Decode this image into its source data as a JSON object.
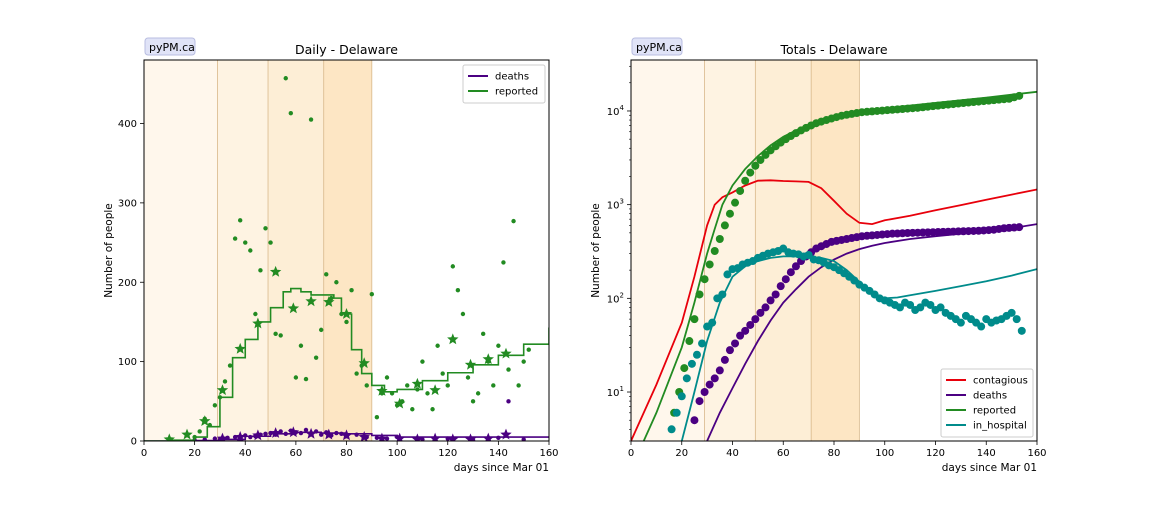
{
  "chart_data": [
    {
      "type": "line",
      "title": "Daily - Delaware",
      "badge": "pyPM.ca",
      "xlabel": "days since Mar 01",
      "ylabel": "Number of people",
      "xlim": [
        0,
        160
      ],
      "ylim": [
        0,
        480
      ],
      "xticks": [
        "0",
        "20",
        "40",
        "60",
        "80",
        "100",
        "120",
        "140",
        "160"
      ],
      "yticks": [
        "0",
        "100",
        "200",
        "300",
        "400"
      ],
      "grid": false,
      "legend_position": "top-right",
      "phases": [
        0,
        29,
        49,
        71,
        90
      ],
      "phase_colors": [
        "#fff7ec",
        "#fef3e2",
        "#fdeed6",
        "#fde6c4"
      ],
      "series": [
        {
          "name": "deaths",
          "color": "#4b0082",
          "model_x": [
            0,
            20,
            30,
            40,
            50,
            60,
            70,
            80,
            90,
            100,
            120,
            140,
            160
          ],
          "model_y": [
            0,
            0.5,
            2,
            6,
            9,
            11,
            10,
            9,
            7,
            5,
            5,
            5,
            5
          ],
          "points_x": [
            20,
            24,
            28,
            30,
            33,
            36,
            38,
            40,
            42,
            44,
            46,
            48,
            50,
            52,
            54,
            56,
            58,
            60,
            62,
            64,
            66,
            68,
            70,
            72,
            74,
            76,
            78,
            80,
            84,
            88,
            92,
            96,
            100,
            110,
            120,
            130,
            140,
            144,
            150
          ],
          "points_y": [
            1,
            2,
            3,
            2,
            4,
            5,
            3,
            7,
            5,
            6,
            8,
            9,
            10,
            8,
            12,
            9,
            13,
            11,
            10,
            14,
            9,
            12,
            8,
            11,
            7,
            10,
            9,
            6,
            8,
            5,
            4,
            3,
            5,
            2,
            3,
            1,
            4,
            50,
            2
          ],
          "weekly_x": [
            31,
            38,
            45,
            52,
            59,
            66,
            73,
            80,
            87,
            94,
            101,
            108,
            115,
            122,
            129,
            136,
            143
          ],
          "weekly_y": [
            3,
            5,
            7,
            10,
            11,
            9,
            8,
            7,
            5,
            3,
            3,
            2,
            3,
            2,
            2,
            3,
            8
          ]
        },
        {
          "name": "reported",
          "color": "#228b22",
          "model_x": [
            0,
            10,
            20,
            25,
            30,
            35,
            40,
            45,
            50,
            55,
            58,
            62,
            66,
            70,
            75,
            78,
            82,
            86,
            90,
            95,
            100,
            110,
            120,
            130,
            140,
            150,
            160
          ],
          "model_y": [
            0,
            1,
            5,
            18,
            55,
            105,
            128,
            150,
            168,
            188,
            192,
            188,
            184,
            184,
            180,
            160,
            115,
            85,
            70,
            62,
            65,
            76,
            86,
            96,
            108,
            122,
            143
          ],
          "points_x": [
            20,
            22,
            24,
            26,
            28,
            30,
            32,
            34,
            36,
            38,
            40,
            42,
            44,
            46,
            48,
            50,
            52,
            54,
            56,
            58,
            60,
            62,
            64,
            66,
            68,
            70,
            72,
            74,
            76,
            78,
            80,
            82,
            84,
            86,
            88,
            90,
            92,
            94,
            96,
            98,
            100,
            102,
            104,
            106,
            108,
            110,
            112,
            114,
            116,
            118,
            120,
            122,
            124,
            126,
            128,
            130,
            132,
            134,
            136,
            138,
            140,
            142,
            144,
            146,
            148,
            150,
            152
          ],
          "points_y": [
            5,
            12,
            28,
            20,
            45,
            55,
            75,
            95,
            255,
            278,
            250,
            240,
            160,
            215,
            268,
            250,
            135,
            133,
            457,
            413,
            80,
            120,
            78,
            405,
            105,
            140,
            210,
            180,
            200,
            160,
            150,
            190,
            85,
            95,
            70,
            185,
            30,
            60,
            80,
            60,
            45,
            50,
            70,
            40,
            65,
            100,
            60,
            40,
            120,
            85,
            70,
            220,
            190,
            160,
            80,
            50,
            60,
            135,
            100,
            70,
            120,
            225,
            90,
            277,
            70,
            100,
            115
          ],
          "weekly_x": [
            10,
            17,
            24,
            31,
            38,
            45,
            52,
            59,
            66,
            73,
            80,
            87,
            94,
            101,
            108,
            115,
            122,
            129,
            136,
            143
          ],
          "weekly_y": [
            2,
            8,
            25,
            64,
            116,
            148,
            213,
            167,
            176,
            175,
            160,
            98,
            63,
            47,
            72,
            64,
            128,
            96,
            103,
            110
          ]
        }
      ]
    },
    {
      "type": "line",
      "title": "Totals - Delaware",
      "badge": "pyPM.ca",
      "xlabel": "days since Mar 01",
      "ylabel": "Number of people",
      "yscale": "log",
      "xlim": [
        0,
        160
      ],
      "ylim": [
        3,
        35000
      ],
      "xticks": [
        "0",
        "20",
        "40",
        "60",
        "80",
        "100",
        "120",
        "140",
        "160"
      ],
      "yticks": [
        {
          "base": "10",
          "exp": "1",
          "value": 10
        },
        {
          "base": "10",
          "exp": "2",
          "value": 100
        },
        {
          "base": "10",
          "exp": "3",
          "value": 1000
        },
        {
          "base": "10",
          "exp": "4",
          "value": 10000
        }
      ],
      "grid": false,
      "legend_position": "bottom-right",
      "phases": [
        0,
        29,
        49,
        71,
        90
      ],
      "phase_colors": [
        "#fff7ec",
        "#fef3e2",
        "#fdeed6",
        "#fde6c4"
      ],
      "series": [
        {
          "name": "contagious",
          "color": "#e8000b",
          "model_x": [
            0,
            10,
            20,
            25,
            30,
            33,
            36,
            40,
            45,
            50,
            55,
            60,
            65,
            70,
            75,
            80,
            85,
            90,
            95,
            100,
            110,
            120,
            130,
            140,
            150,
            160
          ],
          "model_y": [
            3,
            12,
            55,
            170,
            600,
            1000,
            1200,
            1350,
            1600,
            1800,
            1820,
            1790,
            1770,
            1750,
            1500,
            1100,
            800,
            640,
            620,
            680,
            760,
            870,
            990,
            1130,
            1280,
            1450
          ],
          "points_x": [],
          "points_y": []
        },
        {
          "name": "deaths",
          "color": "#4b0082",
          "model_x": [
            30,
            35,
            40,
            45,
            50,
            55,
            60,
            65,
            70,
            75,
            80,
            85,
            90,
            95,
            100,
            110,
            120,
            130,
            140,
            150,
            160
          ],
          "model_y": [
            3,
            6,
            11,
            20,
            35,
            58,
            90,
            125,
            170,
            215,
            260,
            300,
            335,
            365,
            390,
            430,
            460,
            490,
            520,
            560,
            620
          ],
          "points_x": [
            25,
            27,
            29,
            31,
            33,
            35,
            37,
            39,
            41,
            43,
            45,
            47,
            49,
            51,
            53,
            55,
            57,
            59,
            61,
            63,
            65,
            67,
            69,
            71,
            73,
            75,
            77,
            79,
            81,
            83,
            85,
            87,
            89,
            91,
            93,
            95,
            97,
            99,
            101,
            103,
            105,
            107,
            109,
            111,
            113,
            115,
            117,
            119,
            121,
            123,
            125,
            127,
            129,
            131,
            133,
            135,
            137,
            139,
            141,
            143,
            145,
            147,
            149,
            151,
            153
          ],
          "points_y": [
            5,
            8,
            10,
            12,
            14,
            17,
            22,
            28,
            33,
            40,
            45,
            52,
            60,
            70,
            80,
            95,
            110,
            135,
            160,
            190,
            220,
            250,
            280,
            310,
            340,
            360,
            380,
            400,
            410,
            420,
            430,
            440,
            450,
            460,
            465,
            470,
            475,
            480,
            485,
            490,
            492,
            495,
            498,
            500,
            502,
            504,
            506,
            508,
            510,
            512,
            514,
            516,
            518,
            520,
            522,
            524,
            526,
            530,
            535,
            540,
            550,
            560,
            565,
            570,
            575
          ]
        },
        {
          "name": "reported",
          "color": "#228b22",
          "model_x": [
            0,
            10,
            20,
            25,
            30,
            33,
            36,
            40,
            45,
            50,
            55,
            60,
            65,
            70,
            75,
            80,
            90,
            100,
            120,
            140,
            160
          ],
          "model_y": [
            1.5,
            6,
            30,
            90,
            300,
            550,
            1000,
            1600,
            2400,
            3300,
            4300,
            5300,
            6200,
            7000,
            7800,
            8500,
            9700,
            10700,
            12200,
            13900,
            16000
          ],
          "points_x": [
            17,
            19,
            21,
            23,
            25,
            27,
            29,
            31,
            33,
            35,
            37,
            39,
            41,
            43,
            45,
            47,
            49,
            51,
            53,
            55,
            57,
            59,
            61,
            63,
            65,
            67,
            69,
            71,
            73,
            75,
            77,
            79,
            81,
            83,
            85,
            87,
            89,
            91,
            93,
            95,
            97,
            99,
            101,
            103,
            105,
            107,
            109,
            111,
            113,
            115,
            117,
            119,
            121,
            123,
            125,
            127,
            129,
            131,
            133,
            135,
            137,
            139,
            141,
            143,
            145,
            147,
            149,
            151,
            153
          ],
          "points_y": [
            6,
            10,
            18,
            35,
            60,
            110,
            160,
            230,
            320,
            430,
            600,
            800,
            1050,
            1400,
            1800,
            2200,
            2600,
            3000,
            3400,
            3800,
            4200,
            4600,
            5000,
            5400,
            5800,
            6200,
            6600,
            7000,
            7400,
            7700,
            8000,
            8300,
            8600,
            8900,
            9100,
            9300,
            9500,
            9700,
            9800,
            9900,
            10000,
            10100,
            10200,
            10300,
            10400,
            10500,
            10600,
            10700,
            10800,
            10950,
            11100,
            11250,
            11400,
            11550,
            11700,
            11850,
            12000,
            12150,
            12300,
            12450,
            12600,
            12750,
            12900,
            13050,
            13200,
            13350,
            13500,
            14000,
            14500
          ]
        },
        {
          "name": "in_hospital",
          "color": "#008b8b",
          "model_x": [
            20,
            25,
            30,
            35,
            40,
            45,
            50,
            55,
            60,
            65,
            70,
            75,
            80,
            85,
            90,
            95,
            100,
            105,
            110,
            120,
            130,
            140,
            150,
            160
          ],
          "model_y": [
            3,
            10,
            35,
            90,
            170,
            220,
            250,
            270,
            280,
            280,
            275,
            270,
            250,
            200,
            150,
            115,
            100,
            102,
            108,
            120,
            135,
            152,
            175,
            205
          ],
          "points_x": [
            16,
            18,
            20,
            22,
            24,
            26,
            28,
            30,
            32,
            34,
            36,
            38,
            40,
            42,
            44,
            46,
            48,
            50,
            52,
            54,
            56,
            58,
            60,
            62,
            64,
            66,
            68,
            70,
            72,
            74,
            76,
            78,
            80,
            82,
            84,
            86,
            88,
            90,
            92,
            94,
            96,
            98,
            100,
            102,
            104,
            106,
            108,
            110,
            112,
            114,
            116,
            118,
            120,
            122,
            124,
            126,
            128,
            130,
            132,
            134,
            136,
            138,
            140,
            142,
            144,
            146,
            148,
            150,
            152,
            154
          ],
          "points_y": [
            4,
            6,
            9,
            14,
            20,
            25,
            33,
            50,
            55,
            100,
            110,
            180,
            205,
            210,
            230,
            240,
            250,
            270,
            285,
            300,
            310,
            320,
            340,
            310,
            300,
            295,
            280,
            290,
            260,
            255,
            240,
            225,
            215,
            200,
            185,
            170,
            155,
            140,
            130,
            120,
            110,
            100,
            95,
            90,
            85,
            80,
            90,
            85,
            75,
            80,
            90,
            85,
            75,
            80,
            70,
            65,
            60,
            55,
            65,
            60,
            55,
            50,
            60,
            55,
            58,
            60,
            65,
            70,
            60,
            45
          ]
        }
      ]
    }
  ]
}
